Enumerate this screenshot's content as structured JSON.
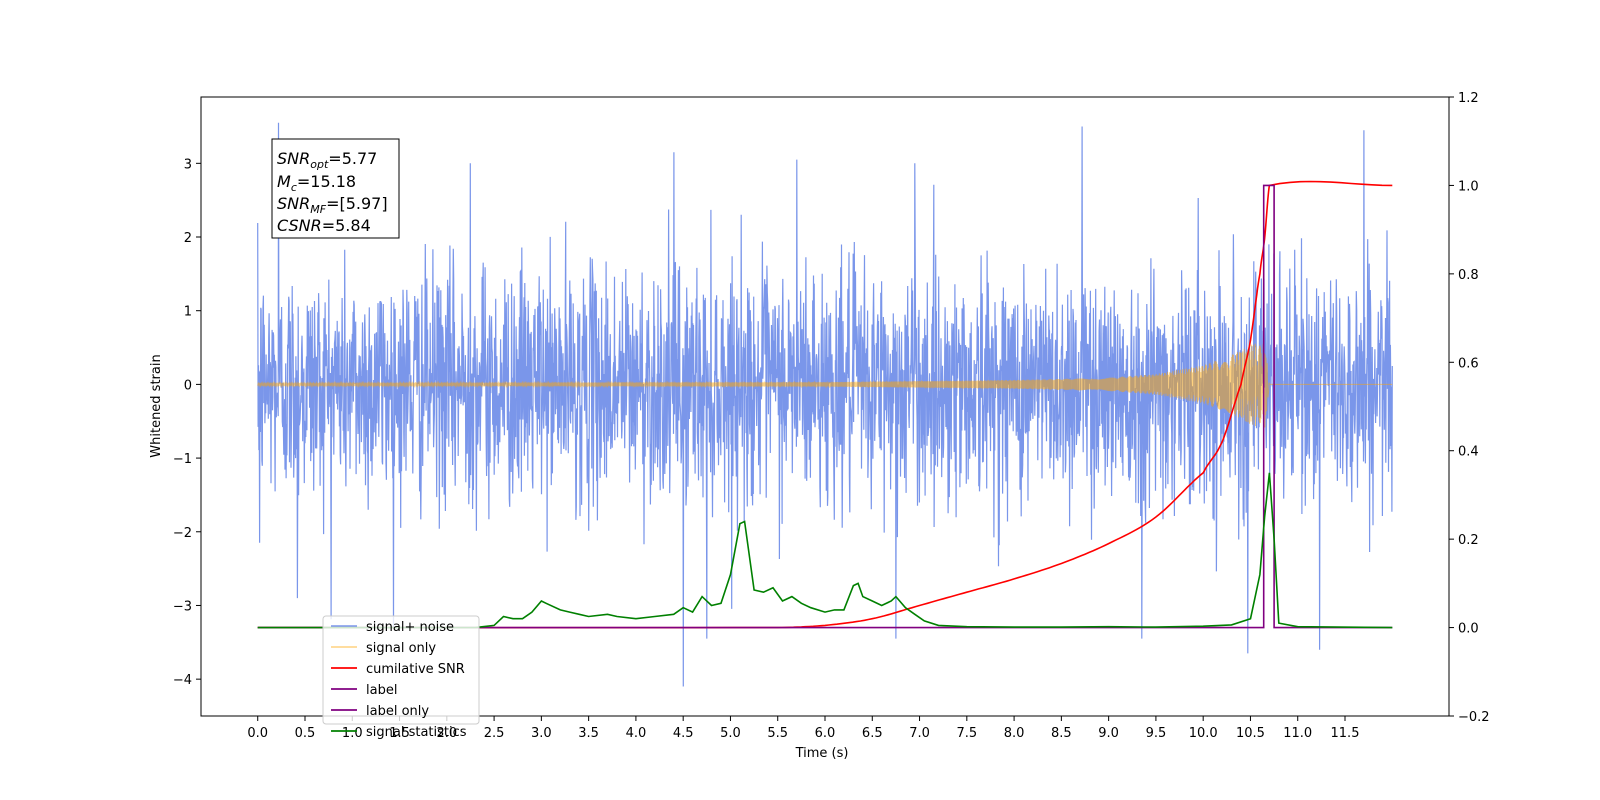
{
  "chart_data": {
    "type": "line",
    "title": "",
    "xlabel": "Time (s)",
    "ylabel": "Whitened strain",
    "y2label": "",
    "xlim": [
      -0.6,
      12.6
    ],
    "ylim": [
      -4.5,
      3.9
    ],
    "y2lim": [
      -0.2,
      1.2
    ],
    "x_ticks": [
      0.0,
      0.5,
      1.0,
      1.5,
      2.0,
      2.5,
      3.0,
      3.5,
      4.0,
      4.5,
      5.0,
      5.5,
      6.0,
      6.5,
      7.0,
      7.5,
      8.0,
      8.5,
      9.0,
      9.5,
      10.0,
      10.5,
      11.0,
      11.5
    ],
    "x_tick_labels": [
      "0.0",
      "0.5",
      "1.0",
      "1.5",
      "2.0",
      "2.5",
      "3.0",
      "3.5",
      "4.0",
      "4.5",
      "5.0",
      "5.5",
      "6.0",
      "6.5",
      "7.0",
      "7.5",
      "8.0",
      "8.5",
      "9.0",
      "9.5",
      "10.0",
      "10.5",
      "11.0",
      "11.5"
    ],
    "y_ticks": [
      -4,
      -3,
      -2,
      -1,
      0,
      1,
      2,
      3
    ],
    "y_tick_labels": [
      "−4",
      "−3",
      "−2",
      "−1",
      "0",
      "1",
      "2",
      "3"
    ],
    "y2_ticks": [
      -0.2,
      0.0,
      0.2,
      0.4,
      0.6,
      0.8,
      1.0,
      1.2
    ],
    "y2_tick_labels": [
      "−0.2",
      "0.0",
      "0.2",
      "0.4",
      "0.6",
      "0.8",
      "1.0",
      "1.2"
    ],
    "grid": false,
    "legend_position": "lower-left",
    "annotation": {
      "lines": [
        {
          "var": "SNR",
          "sub": "opt",
          "text": "=5.77"
        },
        {
          "var": "M",
          "sub": "c",
          "text": "=15.18"
        },
        {
          "var": "SNR",
          "sub": "MF",
          "text": "=[5.97]"
        },
        {
          "var": "CSNR",
          "sub": "",
          "text": "=5.84"
        }
      ]
    },
    "series": [
      {
        "name": "signal+ noise",
        "color": "#4169e1",
        "axis": "left",
        "kind": "noise",
        "x_range": [
          0.0,
          12.0
        ],
        "typical_amplitude": [
          -1.4,
          1.6
        ],
        "notable_peaks": [
          {
            "x": 0.22,
            "y": 3.55
          },
          {
            "x": 0.42,
            "y": -2.9
          },
          {
            "x": 0.02,
            "y": -2.15
          },
          {
            "x": 4.5,
            "y": -4.1
          },
          {
            "x": 8.72,
            "y": 3.5
          },
          {
            "x": 11.7,
            "y": 3.45
          },
          {
            "x": 10.47,
            "y": -3.65
          },
          {
            "x": 11.23,
            "y": -3.6
          },
          {
            "x": 4.75,
            "y": -3.45
          },
          {
            "x": 6.75,
            "y": -3.45
          },
          {
            "x": 9.35,
            "y": -3.45
          },
          {
            "x": 2.25,
            "y": 3.0
          },
          {
            "x": 4.4,
            "y": 3.15
          },
          {
            "x": 6.95,
            "y": 3.0
          },
          {
            "x": 5.7,
            "y": 3.05
          }
        ]
      },
      {
        "name": "signal only",
        "color": "#ffa500",
        "axis": "left",
        "kind": "chirp",
        "x_range": [
          0.0,
          12.0
        ],
        "merger_time": 10.7,
        "envelope": [
          {
            "x": 0.0,
            "y": 0.02
          },
          {
            "x": 6.0,
            "y": 0.03
          },
          {
            "x": 8.0,
            "y": 0.06
          },
          {
            "x": 9.0,
            "y": 0.09
          },
          {
            "x": 9.5,
            "y": 0.14
          },
          {
            "x": 10.0,
            "y": 0.26
          },
          {
            "x": 10.3,
            "y": 0.4
          },
          {
            "x": 10.5,
            "y": 0.54
          },
          {
            "x": 10.65,
            "y": 0.62
          },
          {
            "x": 10.7,
            "y": 0.0
          },
          {
            "x": 12.0,
            "y": 0.0
          }
        ]
      },
      {
        "name": "cumilative SNR",
        "color": "#ff0000",
        "axis": "right",
        "x": [
          0.0,
          5.5,
          6.0,
          6.5,
          7.0,
          7.5,
          8.0,
          8.5,
          9.0,
          9.5,
          10.0,
          10.2,
          10.4,
          10.5,
          10.6,
          10.65,
          10.7,
          12.0
        ],
        "values": [
          0.0,
          0.0,
          0.005,
          0.02,
          0.05,
          0.08,
          0.11,
          0.145,
          0.19,
          0.25,
          0.35,
          0.42,
          0.55,
          0.65,
          0.8,
          0.88,
          1.0,
          1.0
        ]
      },
      {
        "name": "label",
        "color": "#800080",
        "axis": "right",
        "x": [
          0.0,
          10.64,
          10.64,
          10.75,
          10.75,
          12.0
        ],
        "values": [
          0.0,
          0.0,
          1.0,
          1.0,
          0.0,
          0.0
        ]
      },
      {
        "name": "label only",
        "color": "#800080",
        "axis": "right",
        "x": [],
        "values": []
      },
      {
        "name": "signal statistics",
        "color": "#008000",
        "axis": "right",
        "x": [
          0.0,
          2.3,
          2.5,
          2.6,
          2.7,
          2.8,
          2.9,
          3.0,
          3.05,
          3.2,
          3.3,
          3.4,
          3.5,
          3.7,
          3.8,
          4.0,
          4.2,
          4.4,
          4.5,
          4.6,
          4.7,
          4.8,
          4.9,
          5.0,
          5.1,
          5.15,
          5.25,
          5.35,
          5.45,
          5.55,
          5.65,
          5.75,
          5.85,
          6.0,
          6.1,
          6.2,
          6.3,
          6.35,
          6.4,
          6.5,
          6.6,
          6.7,
          6.75,
          6.85,
          6.95,
          7.05,
          7.2,
          7.5,
          8.0,
          8.5,
          9.0,
          9.5,
          10.0,
          10.3,
          10.5,
          10.6,
          10.65,
          10.7,
          10.75,
          10.8,
          11.0,
          12.0
        ],
        "values": [
          0.0,
          0.0,
          0.005,
          0.025,
          0.02,
          0.02,
          0.035,
          0.06,
          0.055,
          0.04,
          0.035,
          0.03,
          0.025,
          0.03,
          0.025,
          0.02,
          0.025,
          0.03,
          0.045,
          0.035,
          0.07,
          0.05,
          0.055,
          0.12,
          0.235,
          0.24,
          0.085,
          0.08,
          0.09,
          0.06,
          0.07,
          0.055,
          0.045,
          0.035,
          0.04,
          0.04,
          0.095,
          0.1,
          0.07,
          0.06,
          0.05,
          0.06,
          0.07,
          0.045,
          0.03,
          0.015,
          0.005,
          0.002,
          0.001,
          0.001,
          0.002,
          0.001,
          0.003,
          0.006,
          0.02,
          0.12,
          0.25,
          0.35,
          0.2,
          0.01,
          0.002,
          0.0
        ]
      }
    ]
  }
}
